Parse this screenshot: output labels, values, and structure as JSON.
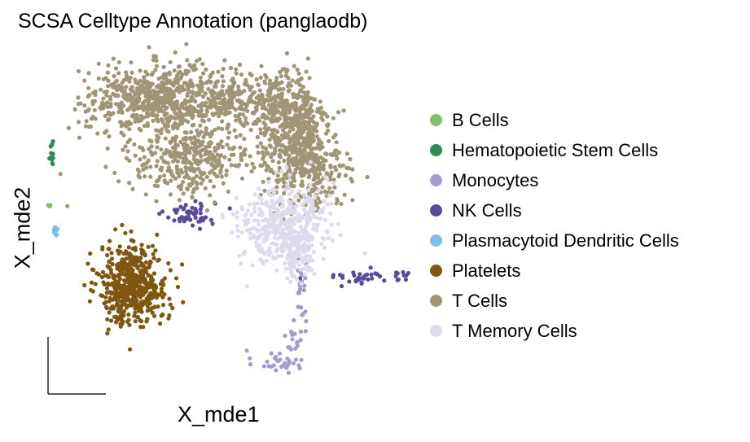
{
  "chart_data": {
    "type": "scatter",
    "title": "SCSA Celltype Annotation (panglaodb)",
    "xlabel": "X_mde1",
    "ylabel": "X_mde2",
    "xlim": [
      -3.0,
      3.0
    ],
    "ylim": [
      -3.0,
      3.0
    ],
    "grid": false,
    "axes": "arrow-style scale bars (no ticks)",
    "legend_position": "right",
    "series": [
      {
        "name": "B Cells",
        "color": "#7ec16c",
        "clusters": [
          {
            "center": [
              -2.8,
              0.4
            ],
            "spread": [
              0.02,
              0.02
            ],
            "count": 3
          }
        ]
      },
      {
        "name": "Hematopoietic Stem Cells",
        "color": "#2e8b57",
        "clusters": [
          {
            "center": [
              -2.76,
              1.25
            ],
            "spread": [
              0.02,
              0.14
            ],
            "count": 14
          }
        ]
      },
      {
        "name": "Monocytes",
        "color": "#a39bd1",
        "clusters": [
          {
            "center": [
              0.85,
              -2.25
            ],
            "spread": [
              0.2,
              0.1
            ],
            "count": 30
          },
          {
            "center": [
              1.12,
              -1.85
            ],
            "spread": [
              0.06,
              0.12
            ],
            "count": 18
          },
          {
            "center": [
              1.25,
              -1.1
            ],
            "spread": [
              0.05,
              0.45
            ],
            "count": 25
          }
        ]
      },
      {
        "name": "NK Cells",
        "color": "#5b4a9a",
        "clusters": [
          {
            "center": [
              -0.55,
              0.25
            ],
            "spread": [
              0.2,
              0.1
            ],
            "count": 55
          },
          {
            "center": [
              2.35,
              -0.82
            ],
            "spread": [
              0.4,
              0.06
            ],
            "count": 40
          }
        ]
      },
      {
        "name": "Plasmacytoid Dendritic Cells",
        "color": "#7bbfe8",
        "clusters": [
          {
            "center": [
              -2.7,
              -0.05
            ],
            "spread": [
              0.02,
              0.07
            ],
            "count": 10
          }
        ]
      },
      {
        "name": "Platelets",
        "color": "#7f5711",
        "clusters": [
          {
            "center": [
              -1.45,
              -0.95
            ],
            "spread": [
              0.27,
              0.33
            ],
            "count": 520
          }
        ]
      },
      {
        "name": "T Cells",
        "color": "#a09676",
        "clusters": [
          {
            "center": [
              -1.0,
              2.15
            ],
            "spread": [
              0.6,
              0.28
            ],
            "count": 650
          },
          {
            "center": [
              -0.55,
              1.15
            ],
            "spread": [
              0.5,
              0.28
            ],
            "count": 350
          },
          {
            "center": [
              1.05,
              1.75
            ],
            "spread": [
              0.3,
              0.42
            ],
            "count": 450
          },
          {
            "center": [
              1.35,
              1.0
            ],
            "spread": [
              0.3,
              0.35
            ],
            "count": 300
          },
          {
            "center": [
              0.25,
              2.2
            ],
            "spread": [
              0.4,
              0.25
            ],
            "count": 200
          }
        ]
      },
      {
        "name": "T Memory Cells",
        "color": "#dddbec",
        "clusters": [
          {
            "center": [
              0.95,
              0.05
            ],
            "spread": [
              0.35,
              0.35
            ],
            "count": 420
          },
          {
            "center": [
              1.2,
              -0.45
            ],
            "spread": [
              0.12,
              0.2
            ],
            "count": 80
          }
        ]
      }
    ]
  }
}
